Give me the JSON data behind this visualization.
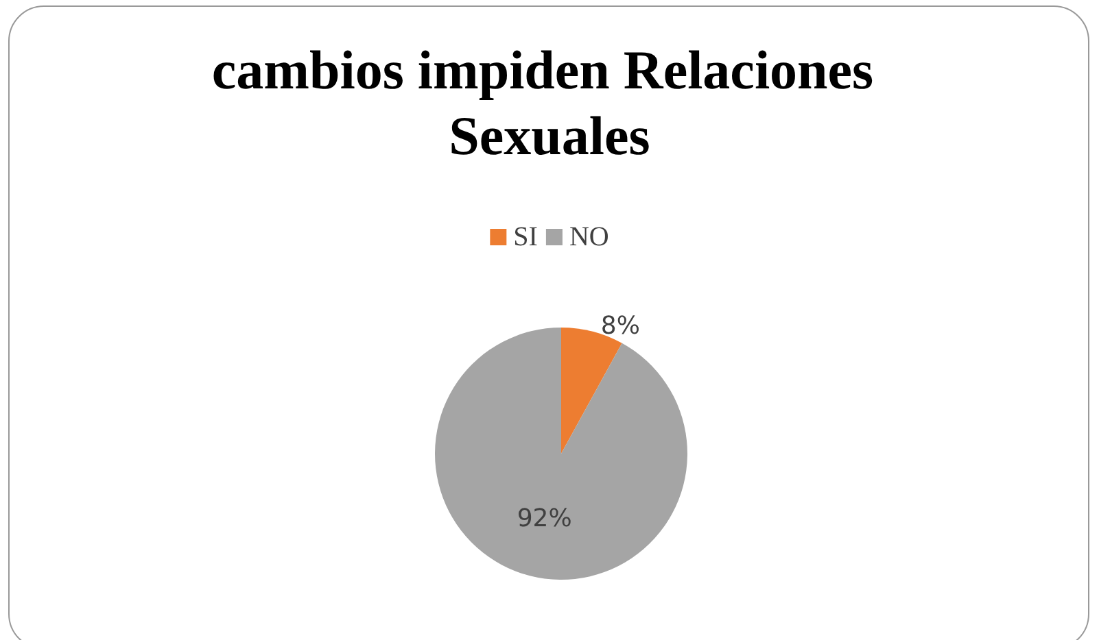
{
  "chart_data": {
    "type": "pie",
    "title": "cambios impiden Relaciones Sexuales",
    "categories": [
      "SI",
      "NO"
    ],
    "values": [
      8,
      92
    ],
    "colors": [
      "#ed7d31",
      "#a5a5a5"
    ],
    "value_labels": [
      "8%",
      "92%"
    ],
    "legend": "top"
  }
}
